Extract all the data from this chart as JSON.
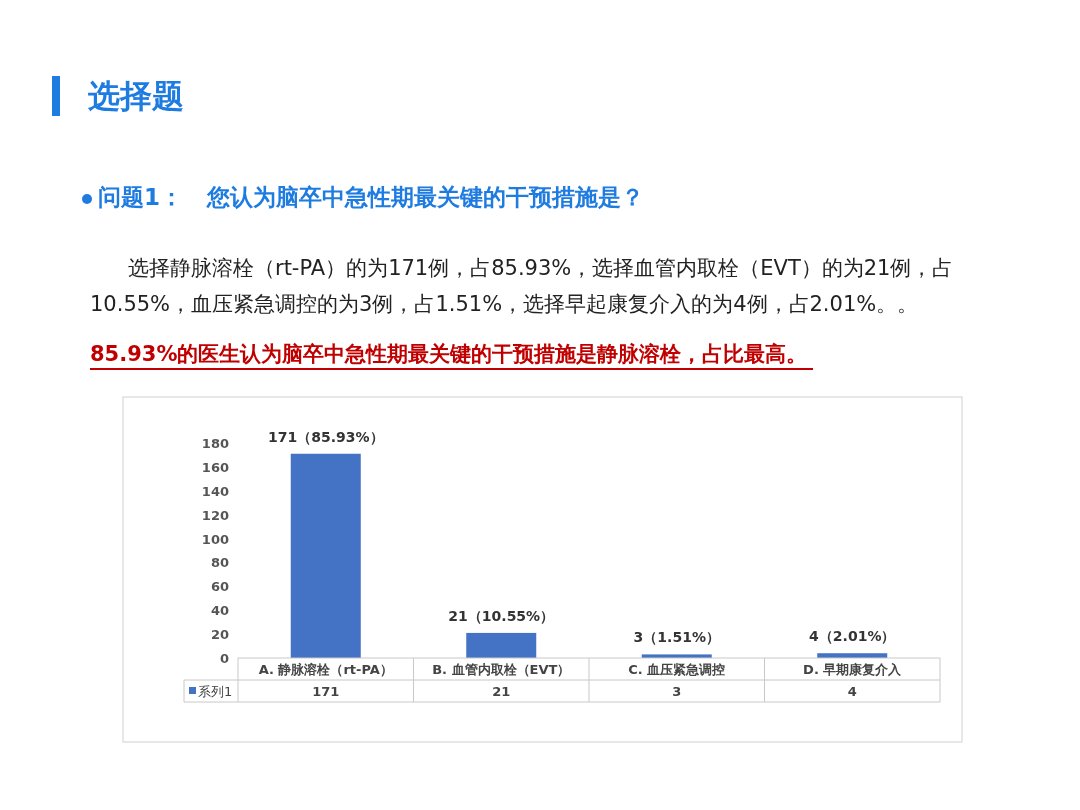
{
  "chart_data": {
    "type": "bar",
    "title": "选择题",
    "subtitle": "问题1：   您认为脑卒中急性期最关键的干预措施是？",
    "annotations": [
      "选择静脉溶栓（rt-PA）的为171例，占85.93%，选择血管内取栓（EVT）的为21例，占10.55%，血压紧急调控的为3例，占1.51%，选择早起康复介入的为4例，占2.01%。。",
      "85.93%的医生认为脑卒中急性期最关键的干预措施是静脉溶栓，占比最高。",
      {
        "text": "171（85.93%）",
        "x": "A. 静脉溶栓（rt-PA）",
        "y": 171
      },
      {
        "text": "21（10.55%）",
        "x": "B. 血管内取栓（EVT）",
        "y": 21
      },
      {
        "text": "3（1.51%）",
        "x": "C. 血压紧急调控",
        "y": 3
      },
      {
        "text": "4（2.01%）",
        "x": "D. 早期康复介入",
        "y": 4
      }
    ],
    "categories": [
      "A. 静脉溶栓（rt-PA）",
      "B. 血管内取栓（EVT）",
      "C. 血压紧急调控",
      "D. 早期康复介入"
    ],
    "series": [
      {
        "name": "系列1",
        "color": "#4472c4",
        "values": [
          171,
          21,
          3,
          4
        ]
      }
    ],
    "ylim": [
      0,
      180
    ],
    "yticks": [
      0,
      20,
      40,
      60,
      80,
      100,
      120,
      140,
      160,
      180
    ],
    "legend": "bottom",
    "data_labels": true
  }
}
